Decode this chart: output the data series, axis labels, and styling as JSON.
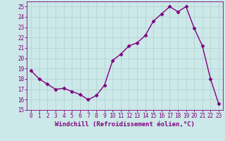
{
  "x": [
    0,
    1,
    2,
    3,
    4,
    5,
    6,
    7,
    8,
    9,
    10,
    11,
    12,
    13,
    14,
    15,
    16,
    17,
    18,
    19,
    20,
    21,
    22,
    23
  ],
  "y": [
    18.8,
    18.0,
    17.5,
    17.0,
    17.1,
    16.8,
    16.5,
    16.0,
    16.4,
    17.4,
    19.8,
    20.4,
    21.2,
    21.5,
    22.2,
    23.6,
    24.3,
    25.0,
    24.5,
    25.0,
    22.9,
    21.2,
    18.0,
    15.6
  ],
  "line_color": "#800080",
  "marker": "D",
  "marker_size": 2.5,
  "bg_color": "#cce8e8",
  "grid_color": "#b0d0d0",
  "xlabel": "Windchill (Refroidissement éolien,°C)",
  "xlabel_color": "#800080",
  "tick_color": "#800080",
  "spine_color": "#800080",
  "ylim": [
    15,
    25.5
  ],
  "xlim": [
    -0.5,
    23.5
  ],
  "yticks": [
    15,
    16,
    17,
    18,
    19,
    20,
    21,
    22,
    23,
    24,
    25
  ],
  "xticks": [
    0,
    1,
    2,
    3,
    4,
    5,
    6,
    7,
    8,
    9,
    10,
    11,
    12,
    13,
    14,
    15,
    16,
    17,
    18,
    19,
    20,
    21,
    22,
    23
  ],
  "tick_fontsize": 5.5,
  "xlabel_fontsize": 6.5,
  "line_width": 1.0
}
